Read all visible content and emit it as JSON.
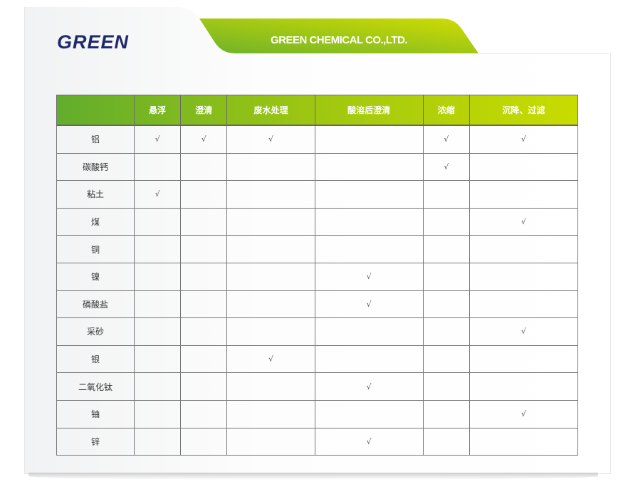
{
  "header": {
    "logo": "GREEN",
    "company": "GREEN CHEMICAL CO.,LTD."
  },
  "colors": {
    "green_start": "#62ad2c",
    "green_end": "#c9dc00",
    "logo": "#1f2a6b"
  },
  "table": {
    "columns": [
      "",
      "悬浮",
      "澄清",
      "废水处理",
      "酸溶后澄清",
      "浓缩",
      "沉降、过滤"
    ],
    "check": "√",
    "rows": [
      {
        "name": "铝",
        "marks": [
          1,
          1,
          1,
          0,
          1,
          1
        ]
      },
      {
        "name": "碳酸钙",
        "marks": [
          0,
          0,
          0,
          0,
          1,
          0
        ]
      },
      {
        "name": "粘土",
        "marks": [
          1,
          0,
          0,
          0,
          0,
          0
        ]
      },
      {
        "name": "煤",
        "marks": [
          0,
          0,
          0,
          0,
          0,
          1
        ]
      },
      {
        "name": "铜",
        "marks": [
          0,
          0,
          0,
          0,
          0,
          0
        ]
      },
      {
        "name": "镍",
        "marks": [
          0,
          0,
          0,
          1,
          0,
          0
        ]
      },
      {
        "name": "磷酸盐",
        "marks": [
          0,
          0,
          0,
          1,
          0,
          0
        ]
      },
      {
        "name": "采砂",
        "marks": [
          0,
          0,
          0,
          0,
          0,
          1
        ]
      },
      {
        "name": "银",
        "marks": [
          0,
          0,
          1,
          0,
          0,
          0
        ]
      },
      {
        "name": "二氧化钛",
        "marks": [
          0,
          0,
          0,
          1,
          0,
          0
        ]
      },
      {
        "name": "铀",
        "marks": [
          0,
          0,
          0,
          0,
          0,
          1
        ]
      },
      {
        "name": "锌",
        "marks": [
          0,
          0,
          0,
          1,
          0,
          0
        ]
      }
    ]
  }
}
